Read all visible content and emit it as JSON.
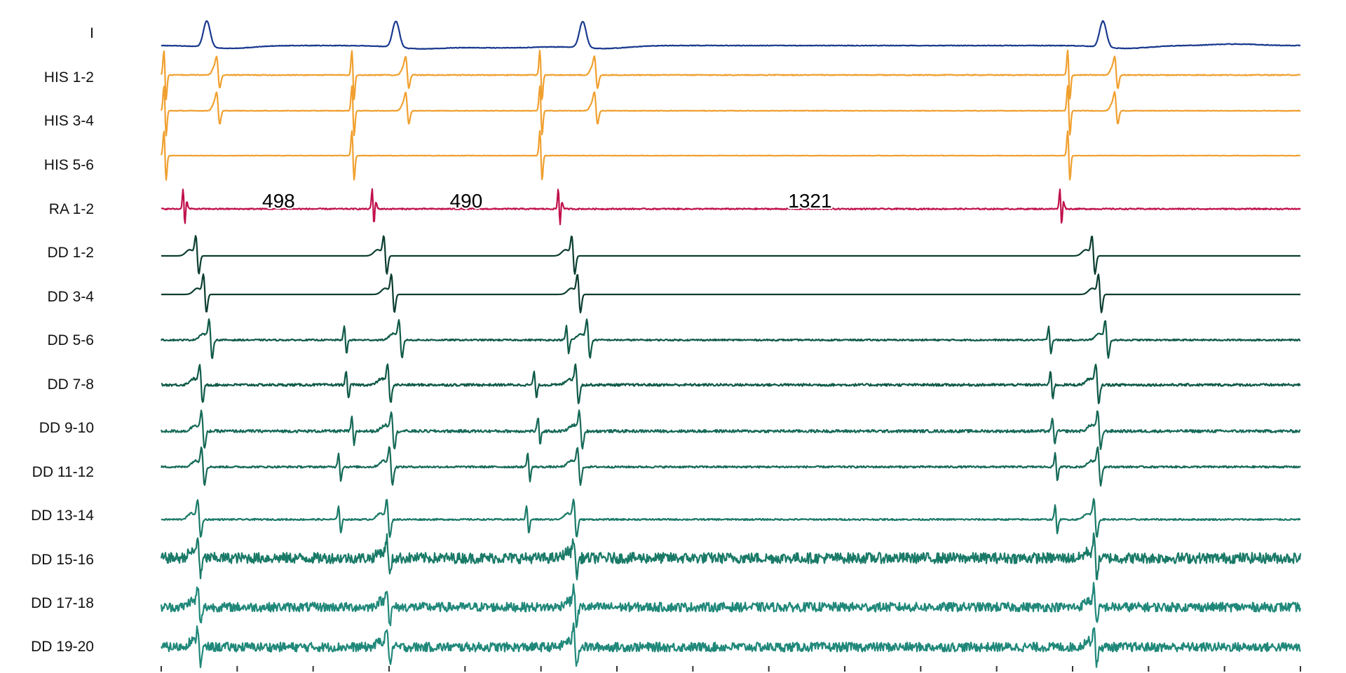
{
  "chart_data": {
    "type": "line",
    "title": "",
    "xlabel": "",
    "ylabel": "",
    "grid": false,
    "legend": "none",
    "time_range_ms": [
      0,
      3000
    ],
    "tick_interval_ms": 200,
    "tick_labels_shown": false,
    "intervals": [
      {
        "label": "498",
        "value": 498,
        "channel": "RA 1-2",
        "from_ms": 60,
        "to_ms": 558
      },
      {
        "label": "490",
        "value": 490,
        "channel": "RA 1-2",
        "from_ms": 558,
        "to_ms": 1048
      },
      {
        "label": "1321",
        "value": 1321,
        "channel": "RA 1-2",
        "from_ms": 1048,
        "to_ms": 2369
      }
    ],
    "series": [
      {
        "name": "I",
        "color": "#1a3a8f",
        "kind": "surface",
        "events_ms": [
          120,
          618,
          1110,
          2480
        ],
        "noise": 0.02
      },
      {
        "name": "HIS 1-2",
        "color": "#f0a030",
        "kind": "his",
        "a_ms": [
          10,
          505,
          1000,
          2390
        ],
        "v_ms": [
          150,
          648,
          1145,
          2515
        ],
        "noise": 0.03
      },
      {
        "name": "HIS 3-4",
        "color": "#f0a030",
        "kind": "his",
        "a_ms": [
          10,
          505,
          1000,
          2390
        ],
        "v_ms": [
          150,
          648,
          1145,
          2515
        ],
        "noise": 0.02
      },
      {
        "name": "HIS 5-6",
        "color": "#f0a030",
        "kind": "his",
        "a_ms": [
          10,
          505,
          1000,
          2390
        ],
        "v_ms": [],
        "noise": 0.015
      },
      {
        "name": "RA 1-2",
        "color": "#c0104a",
        "kind": "ra",
        "a_ms": [
          60,
          558,
          1048,
          2369
        ],
        "noise": 0.04
      },
      {
        "name": "DD 1-2",
        "color": "#0b3d30",
        "kind": "dd",
        "v_ms": [
          95,
          590,
          1085,
          2455
        ],
        "a_ms": [],
        "noise": 0.0
      },
      {
        "name": "DD 3-4",
        "color": "#0b3d30",
        "kind": "dd",
        "v_ms": [
          115,
          610,
          1100,
          2472
        ],
        "a_ms": [],
        "noise": 0.0
      },
      {
        "name": "DD 5-6",
        "color": "#0f5a48",
        "kind": "dd",
        "v_ms": [
          130,
          630,
          1125,
          2490
        ],
        "a_ms": [
          485,
          1070,
          2340
        ],
        "noise": 0.05
      },
      {
        "name": "DD 7-8",
        "color": "#0f5a48",
        "kind": "dd",
        "v_ms": [
          105,
          600,
          1095,
          2465
        ],
        "a_ms": [
          490,
          985,
          2345
        ],
        "noise": 0.08
      },
      {
        "name": "DD 9-10",
        "color": "#166a58",
        "kind": "dd",
        "v_ms": [
          110,
          610,
          1105,
          2470
        ],
        "a_ms": [
          505,
          995,
          2350
        ],
        "noise": 0.09
      },
      {
        "name": "DD 11-12",
        "color": "#166a58",
        "kind": "dd",
        "v_ms": [
          110,
          605,
          1100,
          2470
        ],
        "a_ms": [
          470,
          968,
          2357
        ],
        "noise": 0.06
      },
      {
        "name": "DD 13-14",
        "color": "#1a7a68",
        "kind": "dd",
        "v_ms": [
          100,
          598,
          1090,
          2460
        ],
        "a_ms": [
          470,
          965,
          2357
        ],
        "noise": 0.05
      },
      {
        "name": "DD 15-16",
        "color": "#1a7a68",
        "kind": "dd",
        "v_ms": [
          100,
          598,
          1090,
          2460
        ],
        "a_ms": [],
        "noise": 0.35
      },
      {
        "name": "DD 17-18",
        "color": "#20887a",
        "kind": "dd",
        "v_ms": [
          100,
          598,
          1090,
          2460
        ],
        "a_ms": [],
        "noise": 0.3
      },
      {
        "name": "DD 19-20",
        "color": "#20887a",
        "kind": "dd",
        "v_ms": [
          100,
          598,
          1090,
          2460
        ],
        "a_ms": [],
        "noise": 0.3
      }
    ]
  }
}
